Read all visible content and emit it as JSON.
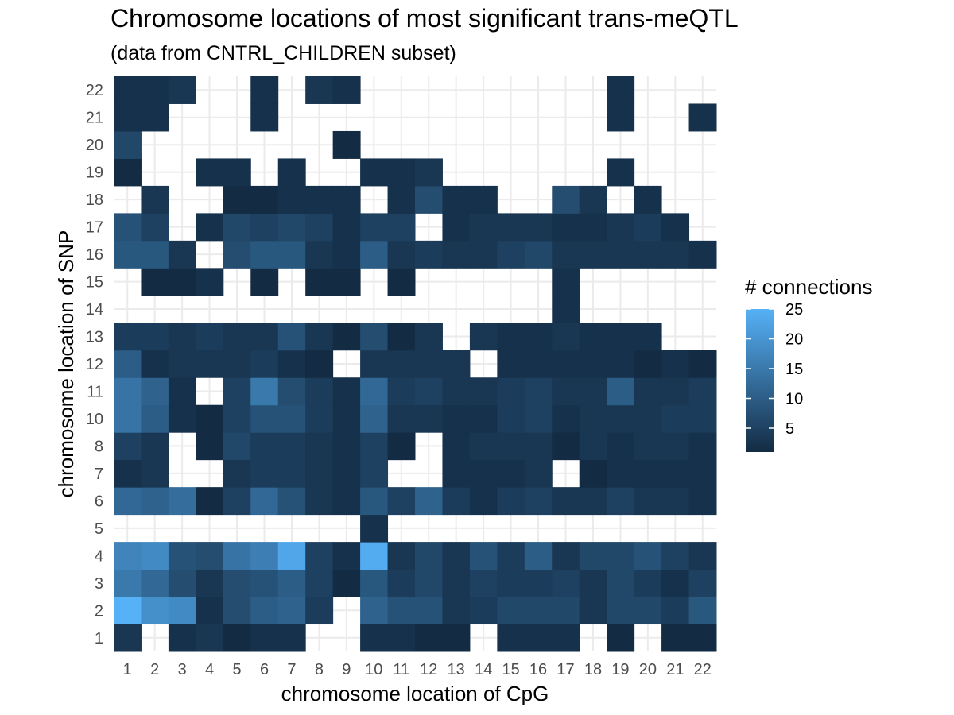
{
  "chart_data": {
    "type": "heatmap",
    "title": "Chromosome locations of most significant trans-meQTL",
    "subtitle": "(data from CNTRL_CHILDREN subset)",
    "xlabel": "chromosome location of CpG",
    "ylabel": "chromosome location of SNP",
    "x_categories": [
      "1",
      "2",
      "3",
      "4",
      "5",
      "6",
      "7",
      "8",
      "9",
      "10",
      "11",
      "12",
      "13",
      "14",
      "15",
      "16",
      "17",
      "18",
      "19",
      "20",
      "21",
      "22"
    ],
    "y_categories": [
      "1",
      "2",
      "3",
      "4",
      "5",
      "6",
      "7",
      "8",
      "10",
      "11",
      "12",
      "13",
      "14",
      "15",
      "16",
      "17",
      "18",
      "19",
      "20",
      "21",
      "22"
    ],
    "cells": {
      "1": {
        "1": 3,
        "3": 2,
        "4": 3,
        "5": 1,
        "6": 2,
        "7": 2,
        "10": 2,
        "11": 2,
        "12": 1,
        "13": 1,
        "15": 2,
        "16": 2,
        "17": 2,
        "19": 1,
        "21": 1,
        "22": 1
      },
      "2": {
        "1": 25,
        "2": 19,
        "3": 18,
        "4": 2,
        "5": 7,
        "6": 10,
        "7": 11,
        "8": 4,
        "10": 11,
        "11": 8,
        "12": 8,
        "13": 3,
        "14": 4,
        "15": 6,
        "16": 6,
        "17": 6,
        "18": 3,
        "19": 6,
        "20": 6,
        "21": 4,
        "22": 9
      },
      "3": {
        "1": 15,
        "2": 12,
        "3": 7,
        "4": 3,
        "5": 7,
        "6": 8,
        "7": 10,
        "8": 5,
        "9": 1,
        "10": 9,
        "11": 4,
        "12": 6,
        "13": 3,
        "14": 5,
        "15": 4,
        "16": 4,
        "17": 5,
        "18": 3,
        "19": 6,
        "20": 4,
        "21": 2,
        "22": 5
      },
      "4": {
        "1": 17,
        "2": 18,
        "3": 8,
        "4": 7,
        "5": 14,
        "6": 16,
        "7": 23,
        "8": 5,
        "9": 2,
        "10": 24,
        "11": 3,
        "12": 6,
        "13": 3,
        "14": 8,
        "15": 4,
        "16": 10,
        "17": 3,
        "18": 6,
        "19": 6,
        "20": 8,
        "21": 5,
        "22": 3
      },
      "5": {
        "10": 2
      },
      "6": {
        "1": 12,
        "2": 11,
        "3": 13,
        "4": 1,
        "5": 5,
        "6": 12,
        "7": 8,
        "8": 3,
        "9": 2,
        "10": 9,
        "11": 5,
        "12": 11,
        "13": 4,
        "14": 2,
        "15": 4,
        "16": 5,
        "17": 3,
        "18": 3,
        "19": 5,
        "20": 3,
        "21": 3,
        "22": 2
      },
      "7": {
        "1": 2,
        "2": 3,
        "5": 3,
        "6": 4,
        "7": 4,
        "8": 3,
        "9": 2,
        "10": 5,
        "13": 2,
        "14": 2,
        "15": 2,
        "16": 3,
        "18": 1,
        "19": 2,
        "20": 2,
        "21": 2,
        "22": 2
      },
      "8": {
        "1": 5,
        "2": 3,
        "4": 1,
        "5": 6,
        "6": 4,
        "7": 4,
        "8": 3,
        "9": 2,
        "10": 5,
        "11": 1,
        "13": 2,
        "14": 3,
        "15": 3,
        "16": 3,
        "17": 1,
        "18": 3,
        "19": 2,
        "20": 3,
        "21": 3,
        "22": 2
      },
      "10": {
        "1": 14,
        "2": 10,
        "3": 2,
        "4": 1,
        "5": 5,
        "6": 8,
        "7": 8,
        "8": 4,
        "9": 2,
        "10": 11,
        "11": 3,
        "12": 3,
        "13": 2,
        "14": 2,
        "15": 4,
        "16": 5,
        "17": 2,
        "18": 3,
        "19": 3,
        "20": 3,
        "21": 4,
        "22": 4
      },
      "11": {
        "1": 14,
        "2": 11,
        "3": 2,
        "5": 5,
        "6": 15,
        "7": 7,
        "8": 4,
        "9": 2,
        "10": 12,
        "11": 4,
        "12": 5,
        "13": 3,
        "14": 3,
        "15": 4,
        "16": 5,
        "17": 3,
        "18": 3,
        "19": 10,
        "20": 3,
        "21": 3,
        "22": 4
      },
      "12": {
        "1": 10,
        "2": 2,
        "3": 3,
        "4": 3,
        "5": 3,
        "6": 4,
        "7": 2,
        "8": 1,
        "10": 3,
        "11": 3,
        "12": 3,
        "13": 3,
        "15": 2,
        "16": 2,
        "17": 2,
        "18": 2,
        "19": 2,
        "20": 1,
        "21": 2,
        "22": 1
      },
      "13": {
        "1": 4,
        "2": 4,
        "3": 3,
        "4": 4,
        "5": 3,
        "6": 3,
        "7": 8,
        "8": 3,
        "9": 1,
        "10": 7,
        "11": 1,
        "12": 3,
        "14": 3,
        "15": 2,
        "16": 2,
        "17": 3,
        "18": 2,
        "19": 2,
        "20": 2
      },
      "14": {
        "17": 2
      },
      "15": {
        "2": 1,
        "3": 1,
        "4": 2,
        "6": 1,
        "8": 1,
        "9": 1,
        "11": 1,
        "17": 2
      },
      "16": {
        "1": 9,
        "2": 9,
        "3": 3,
        "5": 7,
        "6": 9,
        "7": 9,
        "8": 3,
        "9": 2,
        "10": 10,
        "11": 3,
        "12": 4,
        "13": 3,
        "14": 3,
        "15": 5,
        "16": 6,
        "17": 3,
        "18": 3,
        "19": 3,
        "20": 3,
        "21": 3,
        "22": 2
      },
      "17": {
        "1": 8,
        "2": 5,
        "4": 2,
        "5": 6,
        "6": 5,
        "7": 6,
        "8": 5,
        "9": 2,
        "10": 5,
        "11": 5,
        "13": 2,
        "14": 3,
        "15": 3,
        "16": 3,
        "17": 2,
        "18": 2,
        "19": 3,
        "20": 4,
        "21": 2
      },
      "18": {
        "2": 3,
        "5": 1,
        "6": 1,
        "7": 2,
        "8": 2,
        "9": 2,
        "11": 2,
        "12": 7,
        "13": 2,
        "14": 2,
        "17": 7,
        "18": 3,
        "20": 2
      },
      "19": {
        "1": 1,
        "4": 2,
        "5": 2,
        "7": 2,
        "10": 2,
        "11": 2,
        "12": 3,
        "19": 2
      },
      "20": {
        "1": 6,
        "9": 1
      },
      "21": {
        "1": 2,
        "2": 2,
        "6": 2,
        "19": 2,
        "22": 2
      },
      "22": {
        "1": 2,
        "2": 2,
        "3": 3,
        "6": 2,
        "8": 3,
        "9": 2,
        "19": 2
      }
    },
    "color_scale": {
      "title": "# connections",
      "low": "#132b43",
      "high": "#56b1f7",
      "range": [
        1,
        25
      ],
      "breaks": [
        5,
        10,
        15,
        20,
        25
      ]
    },
    "grid": true,
    "legend_position": "right"
  }
}
